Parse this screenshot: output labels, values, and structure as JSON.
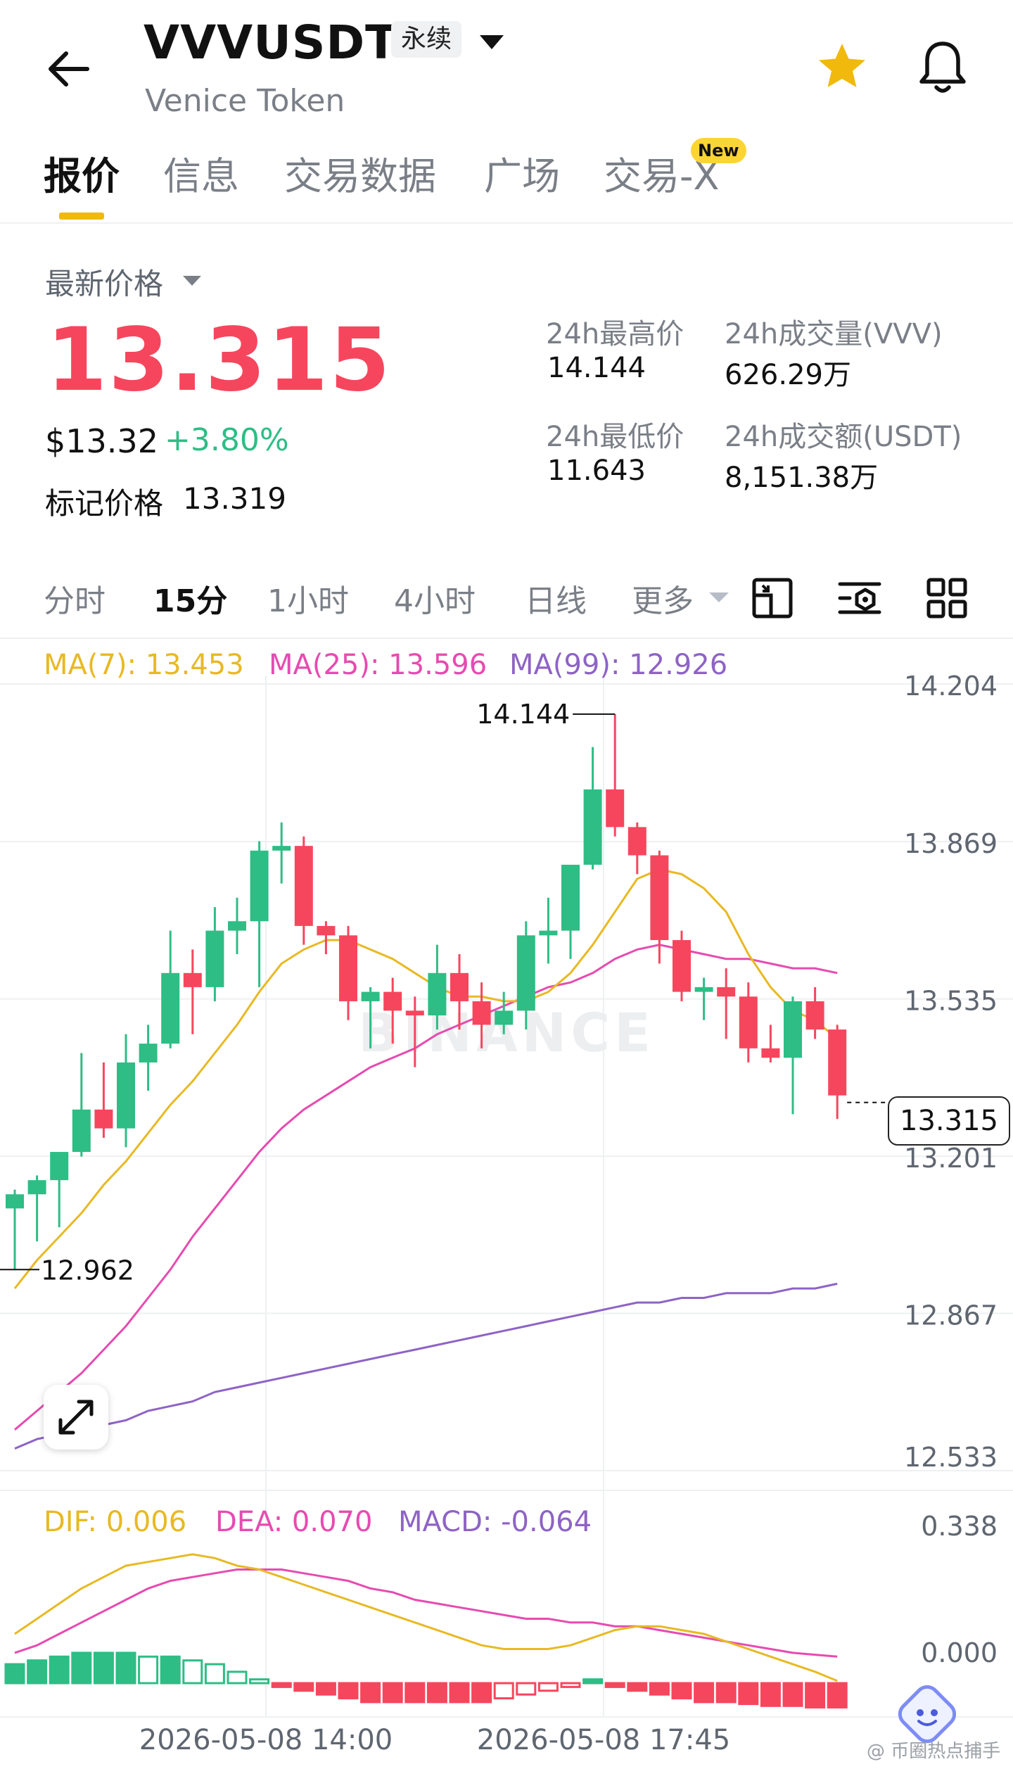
{
  "header": {
    "symbol": "VVVUSDT",
    "contract_type": "永续",
    "name": "Venice Token",
    "icons": [
      "back-arrow-icon",
      "dropdown-caret-icon",
      "star-icon",
      "bell-icon"
    ],
    "star_color": "#f0b90b"
  },
  "tabs": [
    {
      "label": "报价",
      "active": true
    },
    {
      "label": "信息"
    },
    {
      "label": "交易数据"
    },
    {
      "label": "广场"
    },
    {
      "label": "交易-X",
      "badge": "New"
    }
  ],
  "price": {
    "last_label": "最新价格",
    "last": "13.315",
    "usd": "$13.32",
    "change": "+3.80%",
    "mark_label": "标记价格",
    "mark": "13.319"
  },
  "stats": {
    "high_label": "24h最高价",
    "high": "14.144",
    "low_label": "24h最低价",
    "low": "11.643",
    "vol_label": "24h成交量(VVV)",
    "vol": "626.29万",
    "amount_label": "24h成交额(USDT)",
    "amount": "8,151.38万"
  },
  "timeframes": [
    "分时",
    "15分",
    "1小时",
    "4小时",
    "日线",
    "更多"
  ],
  "active_timeframe": "15分",
  "toolbar_icons": [
    "chart-settings-icon",
    "indicator-icon",
    "grid-layout-icon"
  ],
  "legend": {
    "ma7": "MA(7): 13.453",
    "ma25": "MA(25): 13.596",
    "ma99": "MA(99): 12.926",
    "dif": "DIF: 0.006",
    "dea": "DEA: 0.070",
    "macd": "MACD: -0.064"
  },
  "colors": {
    "up": "#2ebd85",
    "down": "#f6465d",
    "ma7": "#e8b923",
    "ma25": "#e64bb0",
    "ma99": "#8e63c6",
    "accent": "#f0b90b"
  },
  "chart_data": {
    "type": "candlestick",
    "y_axis_ticks": [
      "14.204",
      "13.869",
      "13.535",
      "13.201",
      "12.867",
      "12.533"
    ],
    "ylim": [
      12.533,
      14.204
    ],
    "max_marker": "14.144",
    "min_marker": "12.962",
    "current_price": "13.315",
    "x_labels": [
      "2026-05-08 14:00",
      "2026-05-08 17:45"
    ],
    "watermark": "BINANCE",
    "candles": [
      {
        "o": 13.09,
        "h": 13.13,
        "l": 12.96,
        "c": 13.12
      },
      {
        "o": 13.12,
        "h": 13.16,
        "l": 13.02,
        "c": 13.15
      },
      {
        "o": 13.15,
        "h": 13.2,
        "l": 13.05,
        "c": 13.21
      },
      {
        "o": 13.21,
        "h": 13.42,
        "l": 13.2,
        "c": 13.3
      },
      {
        "o": 13.3,
        "h": 13.4,
        "l": 13.24,
        "c": 13.26
      },
      {
        "o": 13.26,
        "h": 13.46,
        "l": 13.22,
        "c": 13.4
      },
      {
        "o": 13.4,
        "h": 13.48,
        "l": 13.34,
        "c": 13.44
      },
      {
        "o": 13.44,
        "h": 13.68,
        "l": 13.43,
        "c": 13.59
      },
      {
        "o": 13.59,
        "h": 13.64,
        "l": 13.46,
        "c": 13.56
      },
      {
        "o": 13.56,
        "h": 13.73,
        "l": 13.53,
        "c": 13.68
      },
      {
        "o": 13.68,
        "h": 13.75,
        "l": 13.63,
        "c": 13.7
      },
      {
        "o": 13.7,
        "h": 13.87,
        "l": 13.56,
        "c": 13.85
      },
      {
        "o": 13.85,
        "h": 13.91,
        "l": 13.78,
        "c": 13.86
      },
      {
        "o": 13.86,
        "h": 13.88,
        "l": 13.65,
        "c": 13.69
      },
      {
        "o": 13.69,
        "h": 13.7,
        "l": 13.63,
        "c": 13.67
      },
      {
        "o": 13.67,
        "h": 13.69,
        "l": 13.49,
        "c": 13.53
      },
      {
        "o": 13.53,
        "h": 13.56,
        "l": 13.43,
        "c": 13.55
      },
      {
        "o": 13.55,
        "h": 13.58,
        "l": 13.44,
        "c": 13.51
      },
      {
        "o": 13.51,
        "h": 13.54,
        "l": 13.39,
        "c": 13.5
      },
      {
        "o": 13.5,
        "h": 13.65,
        "l": 13.47,
        "c": 13.59
      },
      {
        "o": 13.59,
        "h": 13.63,
        "l": 13.47,
        "c": 13.53
      },
      {
        "o": 13.53,
        "h": 13.57,
        "l": 13.43,
        "c": 13.48
      },
      {
        "o": 13.48,
        "h": 13.55,
        "l": 13.46,
        "c": 13.51
      },
      {
        "o": 13.51,
        "h": 13.7,
        "l": 13.47,
        "c": 13.67
      },
      {
        "o": 13.67,
        "h": 13.75,
        "l": 13.61,
        "c": 13.68
      },
      {
        "o": 13.68,
        "h": 13.81,
        "l": 13.62,
        "c": 13.82
      },
      {
        "o": 13.82,
        "h": 14.07,
        "l": 13.81,
        "c": 13.98
      },
      {
        "o": 13.98,
        "h": 14.14,
        "l": 13.88,
        "c": 13.9
      },
      {
        "o": 13.9,
        "h": 13.91,
        "l": 13.8,
        "c": 13.84
      },
      {
        "o": 13.84,
        "h": 13.85,
        "l": 13.61,
        "c": 13.66
      },
      {
        "o": 13.66,
        "h": 13.68,
        "l": 13.53,
        "c": 13.55
      },
      {
        "o": 13.55,
        "h": 13.58,
        "l": 13.49,
        "c": 13.56
      },
      {
        "o": 13.56,
        "h": 13.6,
        "l": 13.45,
        "c": 13.54
      },
      {
        "o": 13.54,
        "h": 13.57,
        "l": 13.4,
        "c": 13.43
      },
      {
        "o": 13.43,
        "h": 13.48,
        "l": 13.4,
        "c": 13.41
      },
      {
        "o": 13.41,
        "h": 13.54,
        "l": 13.29,
        "c": 13.53
      },
      {
        "o": 13.53,
        "h": 13.56,
        "l": 13.45,
        "c": 13.47
      },
      {
        "o": 13.47,
        "h": 13.48,
        "l": 13.28,
        "c": 13.33
      }
    ],
    "ma7": [
      12.92,
      12.98,
      13.03,
      13.08,
      13.14,
      13.19,
      13.25,
      13.31,
      13.36,
      13.42,
      13.48,
      13.55,
      13.61,
      13.64,
      13.66,
      13.66,
      13.64,
      13.62,
      13.59,
      13.56,
      13.54,
      13.54,
      13.53,
      13.53,
      13.55,
      13.59,
      13.65,
      13.72,
      13.79,
      13.81,
      13.8,
      13.77,
      13.72,
      13.63,
      13.56,
      13.51,
      13.49,
      13.45
    ],
    "ma25": [
      12.62,
      12.66,
      12.7,
      12.74,
      12.79,
      12.84,
      12.9,
      12.96,
      13.03,
      13.09,
      13.15,
      13.21,
      13.26,
      13.3,
      13.33,
      13.36,
      13.39,
      13.41,
      13.43,
      13.46,
      13.48,
      13.5,
      13.52,
      13.54,
      13.56,
      13.57,
      13.59,
      13.62,
      13.64,
      13.65,
      13.64,
      13.63,
      13.62,
      13.62,
      13.61,
      13.6,
      13.6,
      13.59
    ],
    "ma99": [
      12.58,
      12.6,
      12.61,
      12.62,
      12.63,
      12.64,
      12.66,
      12.67,
      12.68,
      12.7,
      12.71,
      12.72,
      12.73,
      12.74,
      12.75,
      12.76,
      12.77,
      12.78,
      12.79,
      12.8,
      12.81,
      12.82,
      12.83,
      12.84,
      12.85,
      12.86,
      12.87,
      12.88,
      12.89,
      12.89,
      12.9,
      12.9,
      12.91,
      12.91,
      12.91,
      12.92,
      12.92,
      12.93
    ],
    "macd_ticks": [
      "0.338",
      "0.000"
    ],
    "dif": [
      0.13,
      0.17,
      0.21,
      0.25,
      0.28,
      0.31,
      0.32,
      0.33,
      0.34,
      0.33,
      0.31,
      0.3,
      0.28,
      0.26,
      0.24,
      0.22,
      0.2,
      0.18,
      0.16,
      0.14,
      0.12,
      0.1,
      0.09,
      0.09,
      0.09,
      0.1,
      0.12,
      0.14,
      0.15,
      0.15,
      0.14,
      0.13,
      0.11,
      0.09,
      0.07,
      0.05,
      0.03,
      0.006
    ],
    "dea": [
      0.08,
      0.1,
      0.13,
      0.16,
      0.19,
      0.22,
      0.25,
      0.27,
      0.28,
      0.29,
      0.3,
      0.3,
      0.3,
      0.29,
      0.28,
      0.27,
      0.25,
      0.24,
      0.22,
      0.21,
      0.2,
      0.19,
      0.18,
      0.17,
      0.17,
      0.16,
      0.16,
      0.15,
      0.15,
      0.14,
      0.13,
      0.12,
      0.11,
      0.1,
      0.09,
      0.08,
      0.075,
      0.07
    ],
    "macd": [
      0.05,
      0.06,
      0.07,
      0.08,
      0.08,
      0.08,
      0.07,
      0.07,
      0.06,
      0.05,
      0.03,
      0.01,
      -0.01,
      -0.02,
      -0.03,
      -0.04,
      -0.05,
      -0.05,
      -0.05,
      -0.05,
      -0.05,
      -0.05,
      -0.04,
      -0.03,
      -0.02,
      -0.01,
      0.01,
      -0.01,
      -0.02,
      -0.03,
      -0.04,
      -0.05,
      -0.05,
      -0.055,
      -0.06,
      -0.06,
      -0.064,
      -0.064
    ]
  },
  "footer": {
    "watermark": "@ 币圈热点捕手",
    "icons": [
      "expand-icon",
      "assistant-mascot-icon"
    ]
  }
}
